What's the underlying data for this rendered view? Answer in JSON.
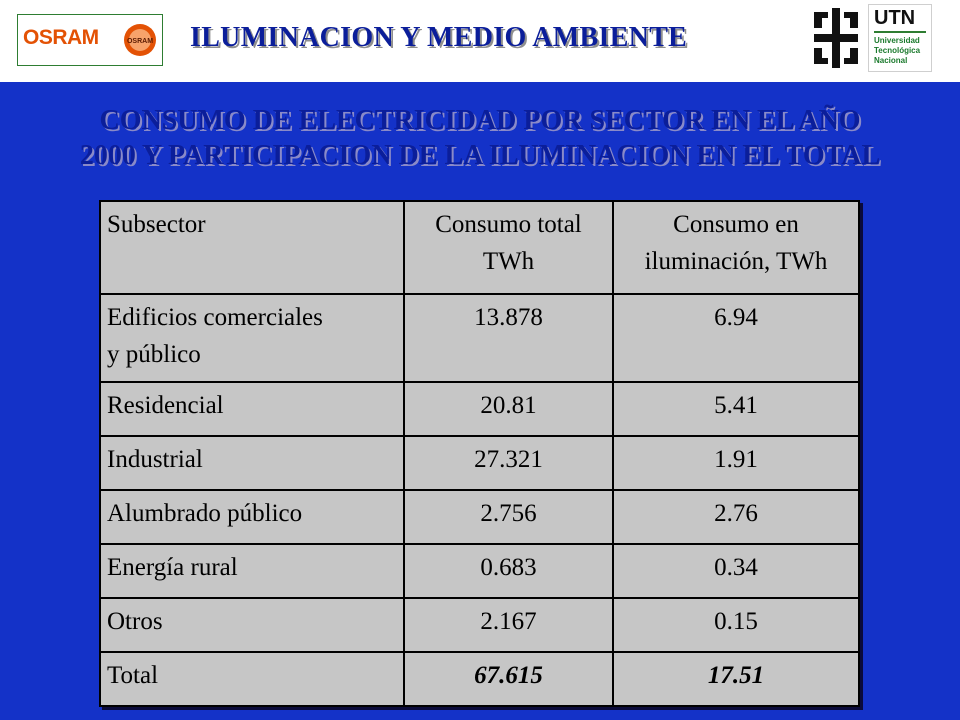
{
  "header": {
    "title": "ILUMINACION Y MEDIO AMBIENTE",
    "osram_logo": {
      "word": "OSRAM",
      "badge": "OSRAM"
    },
    "utn_logo": {
      "abbr": "UTN",
      "name_lines": [
        "Universidad",
        "Tecnológica",
        "Nacional"
      ]
    }
  },
  "subtitle": {
    "line1": "CONSUMO DE ELECTRICIDAD POR SECTOR EN EL AÑO",
    "line2": "2000 Y PARTICIPACION DE LA ILUMINACION EN EL TOTAL"
  },
  "colors": {
    "background_blue": "#1432c8",
    "title_blue": "#0b1e9a",
    "table_gray": "#c6c6c6",
    "osram_orange": "#e35205",
    "utn_green": "#1b7a2d"
  },
  "table": {
    "headers": {
      "subsector": "Subsector",
      "total": [
        "Consumo total",
        "TWh"
      ],
      "lighting": [
        "Consumo en",
        "iluminación, TWh"
      ]
    },
    "rows": [
      {
        "subsector": [
          "Edificios comerciales",
          "y público"
        ],
        "total": "13.878",
        "lighting": "6.94"
      },
      {
        "subsector": "Residencial",
        "total": "20.81",
        "lighting": "5.41"
      },
      {
        "subsector": "Industrial",
        "total": "27.321",
        "lighting": "1.91"
      },
      {
        "subsector": "Alumbrado público",
        "total": "2.756",
        "lighting": "2.76"
      },
      {
        "subsector": "Energía rural",
        "total": "0.683",
        "lighting": "0.34"
      },
      {
        "subsector": "Otros",
        "total": "2.167",
        "lighting": "0.15"
      }
    ],
    "total_row": {
      "label": "Total",
      "total": "67.615",
      "lighting": "17.51"
    }
  }
}
